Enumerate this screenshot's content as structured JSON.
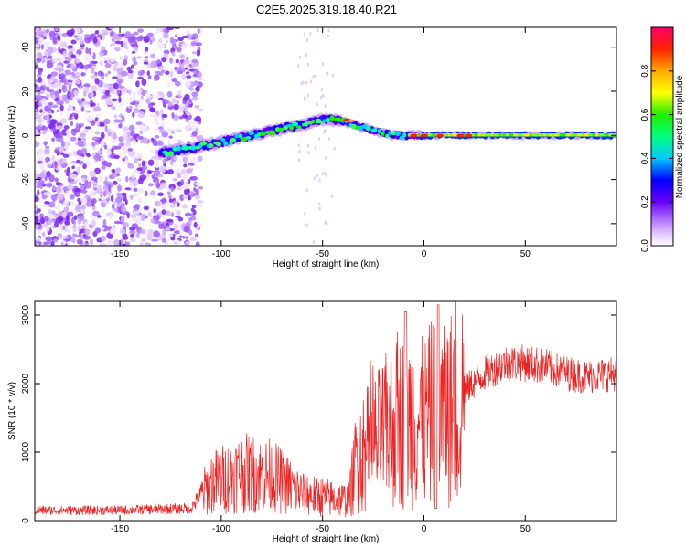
{
  "title": "C2E5.2025.319.18.40.R21",
  "colors": {
    "snr_line": "#ee2222",
    "axis": "#000000",
    "background": "#ffffff"
  },
  "chart_data": [
    {
      "type": "heatmap",
      "name": "spectrogram",
      "xlabel": "Height of straight line (km)",
      "ylabel": "Frequency (Hz)",
      "xlim": [
        -192,
        95
      ],
      "ylim": [
        -50,
        49
      ],
      "xticks": [
        -150,
        -100,
        -50,
        0,
        50
      ],
      "yticks": [
        -40,
        -20,
        0,
        20,
        40
      ],
      "colorbar": {
        "label": "Normalized spectral amplitude",
        "range": [
          0,
          1
        ],
        "ticks": [
          0.0,
          0.2,
          0.4,
          0.6,
          0.8
        ]
      },
      "features": [
        {
          "region": "noise",
          "x_range": [
            -192,
            -110
          ],
          "description": "scattered low-amplitude noise"
        },
        {
          "region": "trace",
          "points": [
            [
              -130,
              -8
            ],
            [
              -110,
              -5
            ],
            [
              -90,
              -1
            ],
            [
              -70,
              3
            ],
            [
              -50,
              7
            ],
            [
              -42,
              7
            ],
            [
              -35,
              5
            ],
            [
              -25,
              2
            ],
            [
              -15,
              0
            ],
            [
              0,
              0
            ],
            [
              20,
              0
            ],
            [
              50,
              0
            ],
            [
              95,
              0
            ]
          ],
          "peak_amplitude": 0.95
        }
      ]
    },
    {
      "type": "line",
      "name": "snr",
      "xlabel": "Height of straight line (km)",
      "ylabel": "SNR (10 * v/v)",
      "xlim": [
        -192,
        95
      ],
      "ylim": [
        0,
        3200
      ],
      "xticks": [
        -150,
        -100,
        -50,
        0,
        50
      ],
      "yticks": [
        0,
        1000,
        2000,
        3000
      ],
      "envelope": [
        {
          "x": -192,
          "y": 150
        },
        {
          "x": -150,
          "y": 150
        },
        {
          "x": -115,
          "y": 180
        },
        {
          "x": -105,
          "y": 550
        },
        {
          "x": -90,
          "y": 700
        },
        {
          "x": -75,
          "y": 650
        },
        {
          "x": -60,
          "y": 400
        },
        {
          "x": -45,
          "y": 320
        },
        {
          "x": -37,
          "y": 300
        },
        {
          "x": -33,
          "y": 950
        },
        {
          "x": -25,
          "y": 1100
        },
        {
          "x": -15,
          "y": 1400
        },
        {
          "x": -5,
          "y": 1500
        },
        {
          "x": 0,
          "y": 1400
        },
        {
          "x": 5,
          "y": 1600
        },
        {
          "x": 10,
          "y": 1500
        },
        {
          "x": 15,
          "y": 1700
        },
        {
          "x": 20,
          "y": 1900
        },
        {
          "x": 30,
          "y": 2150
        },
        {
          "x": 40,
          "y": 2300
        },
        {
          "x": 50,
          "y": 2300
        },
        {
          "x": 60,
          "y": 2250
        },
        {
          "x": 70,
          "y": 2150
        },
        {
          "x": 80,
          "y": 2100
        },
        {
          "x": 95,
          "y": 2150
        }
      ]
    }
  ]
}
